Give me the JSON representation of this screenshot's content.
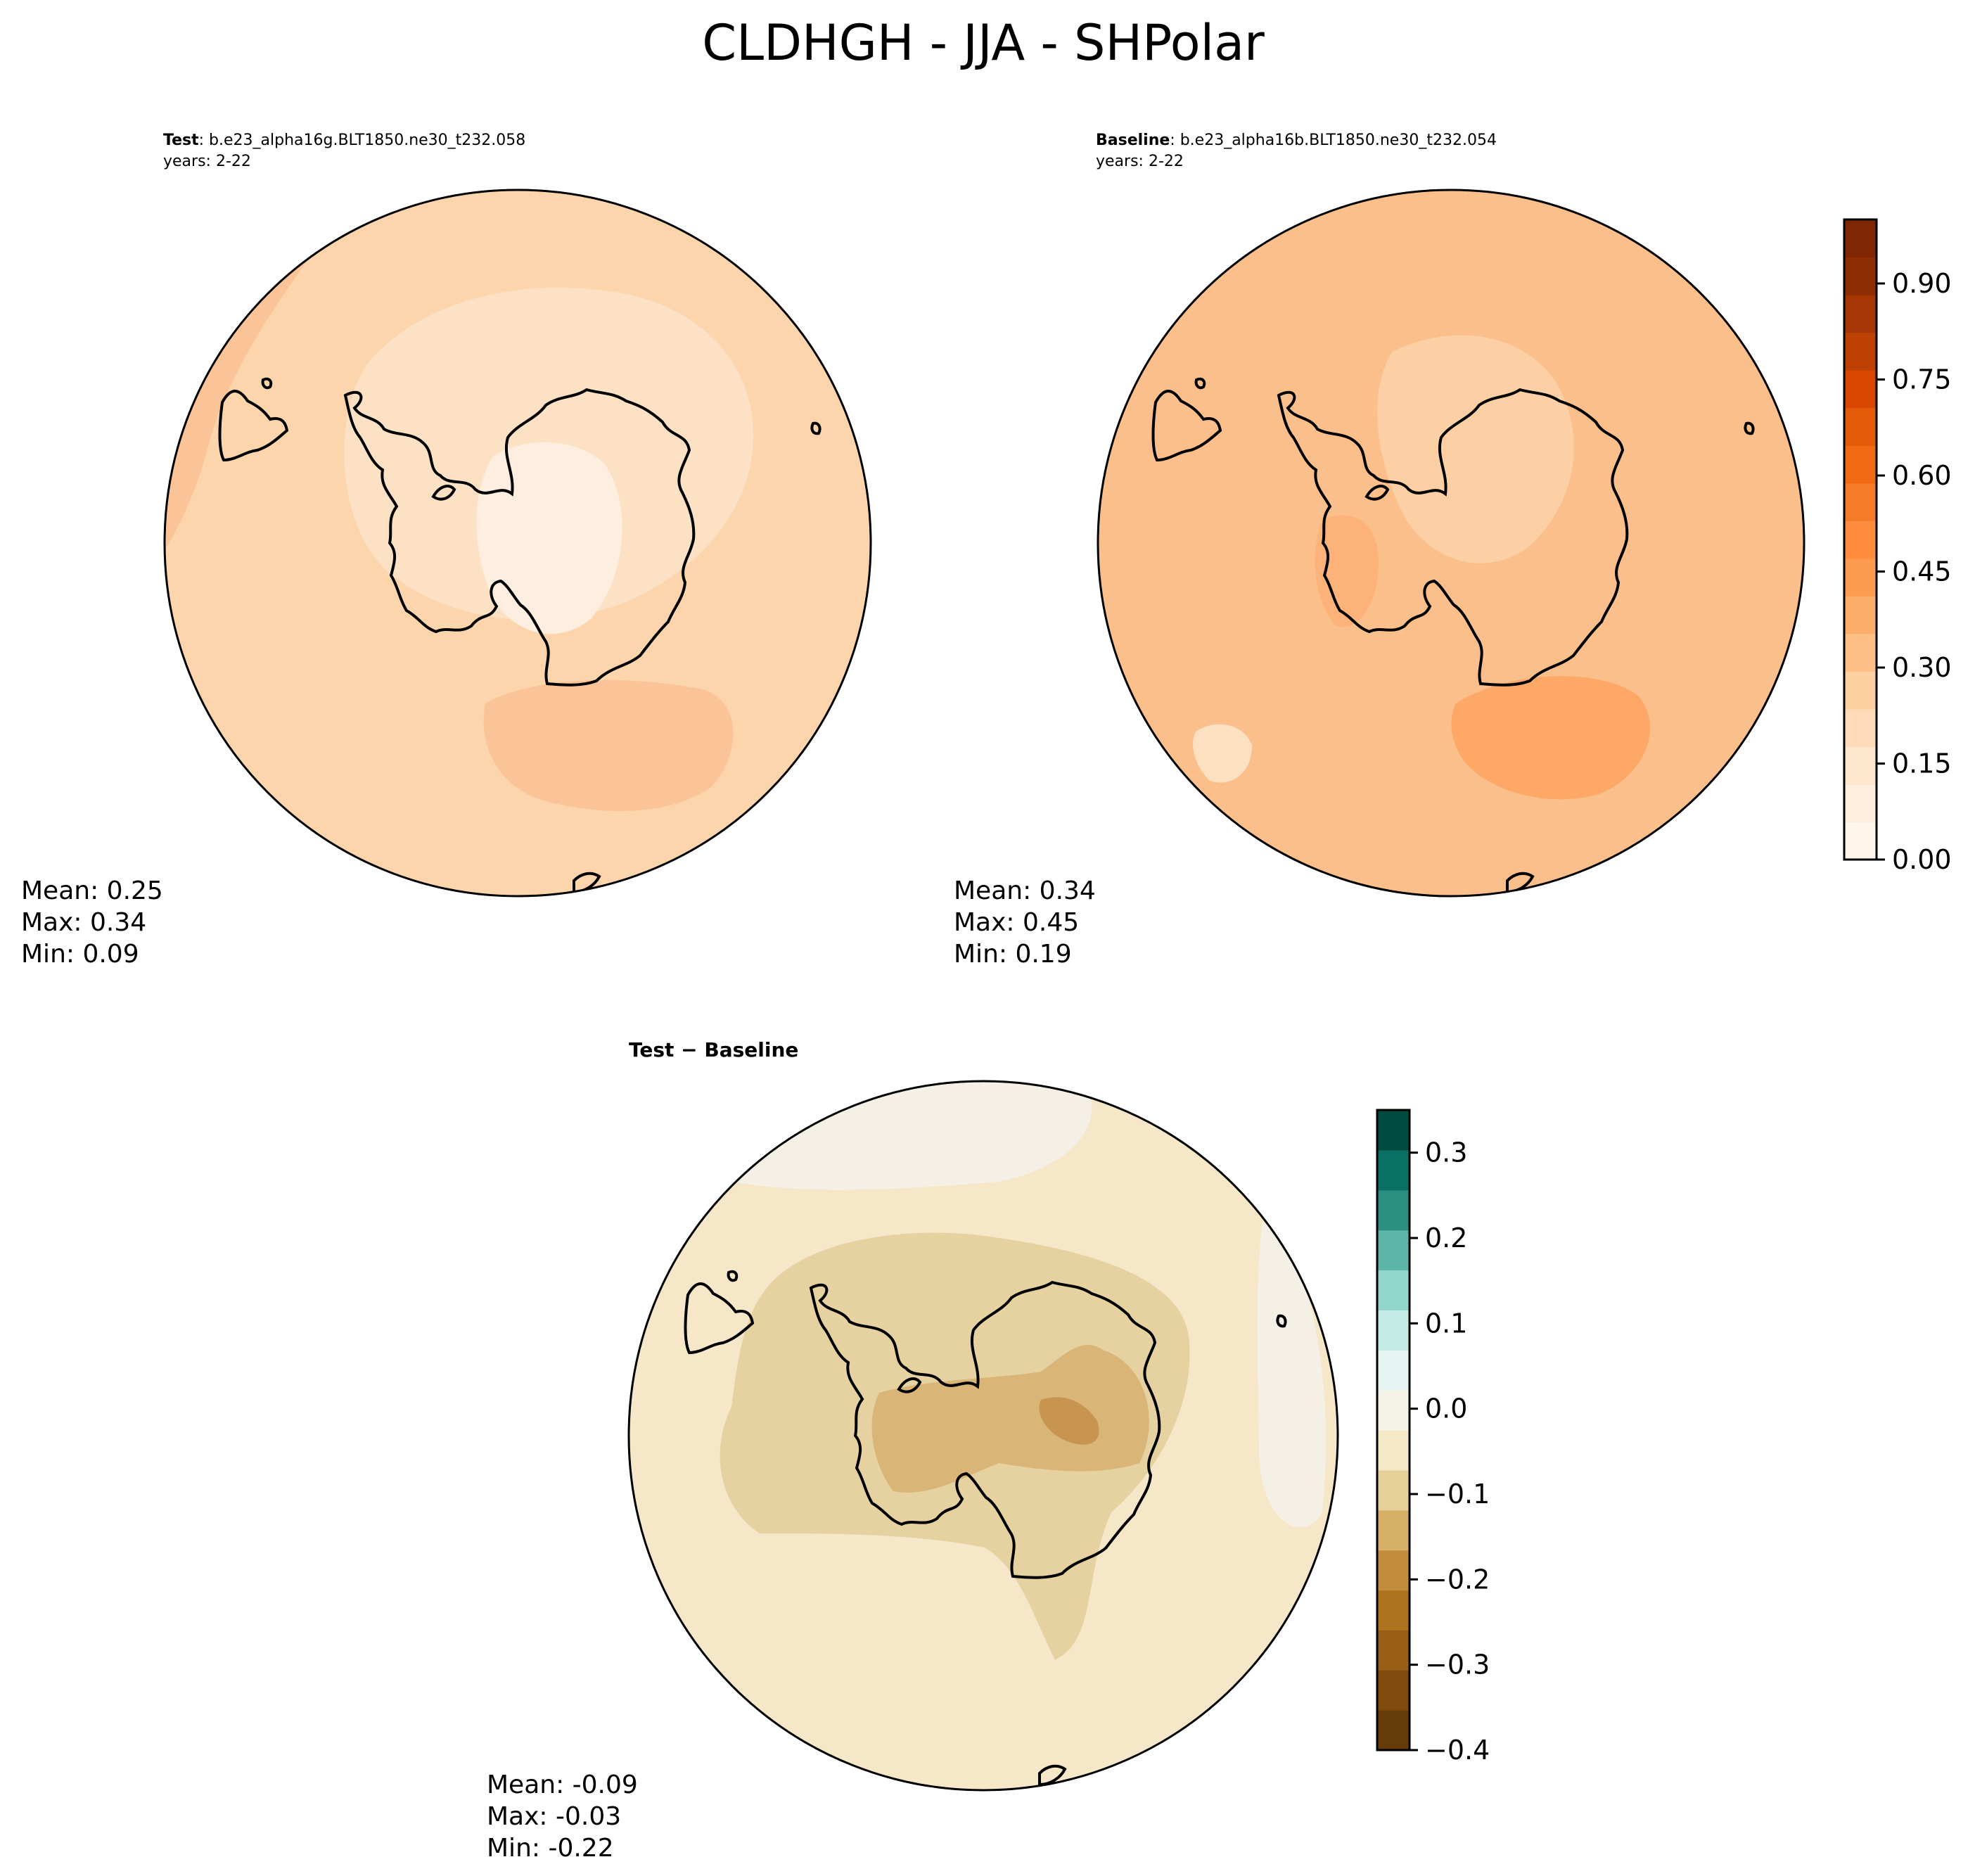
{
  "figure": {
    "title": "CLDHGH - JJA - SHPolar"
  },
  "panels": [
    {
      "id": "test",
      "label": "Test",
      "case": ": b.e23_alpha16g.BLT1850.ne30_t232.058",
      "years": "years: 2-22",
      "stats": {
        "mean": "Mean:  0.25",
        "max": "Max:  0.34",
        "min": "Min:  0.09"
      },
      "fill_color": "#fcd5ad",
      "regions": [
        {
          "color": "#fde1c4"
        },
        {
          "color": "#fbc498"
        },
        {
          "color": "#feeedf"
        },
        {
          "color": "#fbc498"
        }
      ]
    },
    {
      "id": "baseline",
      "label": "Baseline",
      "case": ": b.e23_alpha16b.BLT1850.ne30_t232.054",
      "years": "years: 2-22",
      "stats": {
        "mean": "Mean:  0.34",
        "max": "Max:  0.45",
        "min": "Min:  0.19"
      },
      "fill_color": "#fbbf8c",
      "regions": [
        {
          "color": "#fcd0a4"
        },
        {
          "color": "#fda866"
        },
        {
          "color": "#fdb27a"
        },
        {
          "color": "#fde0c2"
        }
      ]
    },
    {
      "id": "diff",
      "label": "Test − Baseline",
      "stats": {
        "mean": "Mean: -0.09",
        "max": "Max: -0.03",
        "min": "Min: -0.22"
      },
      "fill_color": "#f5e7c8",
      "regions": [
        {
          "color": "#f4f0e6"
        },
        {
          "color": "#e6d1a1"
        },
        {
          "color": "#d9b677"
        },
        {
          "color": "#c89550"
        }
      ]
    }
  ],
  "chart_data": [
    {
      "type": "heatmap",
      "name": "Test",
      "summary": {
        "mean": 0.25,
        "max": 0.34,
        "min": 0.09
      }
    },
    {
      "type": "heatmap",
      "name": "Baseline",
      "summary": {
        "mean": 0.34,
        "max": 0.45,
        "min": 0.19
      }
    },
    {
      "type": "heatmap",
      "name": "Test − Baseline",
      "summary": {
        "mean": -0.09,
        "max": -0.03,
        "min": -0.22
      }
    }
  ],
  "colorbars": [
    {
      "id": "cbar-main",
      "range": [
        0,
        1.0
      ],
      "colors": [
        "#fff5eb",
        "#ffeedd",
        "#fee6ce",
        "#fddbb9",
        "#fdd0a2",
        "#fdbf85",
        "#fdae6b",
        "#fd9c4f",
        "#fd8d3c",
        "#f57b29",
        "#f16913",
        "#e35a09",
        "#d94801",
        "#bc4001",
        "#a63603",
        "#8c2d04",
        "#7f2704"
      ],
      "ticks": [
        {
          "value": 0.0,
          "label": "0.00"
        },
        {
          "value": 0.15,
          "label": "0.15"
        },
        {
          "value": 0.3,
          "label": "0.30"
        },
        {
          "value": 0.45,
          "label": "0.45"
        },
        {
          "value": 0.6,
          "label": "0.60"
        },
        {
          "value": 0.75,
          "label": "0.75"
        },
        {
          "value": 0.9,
          "label": "0.90"
        }
      ]
    },
    {
      "id": "cbar-diff",
      "range": [
        -0.4,
        0.35
      ],
      "colors": [
        "#663b0a",
        "#804b0d",
        "#985e16",
        "#ad731f",
        "#c28d3d",
        "#d6b066",
        "#e7d19b",
        "#f5e8c6",
        "#f5f2e8",
        "#e6f4f1",
        "#c4eae3",
        "#93d6cb",
        "#5cb5a8",
        "#2c8f82",
        "#0a6f64",
        "#004b3f"
      ],
      "ticks": [
        {
          "value": -0.4,
          "label": "−0.4"
        },
        {
          "value": -0.3,
          "label": "−0.3"
        },
        {
          "value": -0.2,
          "label": "−0.2"
        },
        {
          "value": -0.1,
          "label": "−0.1"
        },
        {
          "value": 0.0,
          "label": "0.0"
        },
        {
          "value": 0.1,
          "label": "0.1"
        },
        {
          "value": 0.2,
          "label": "0.2"
        },
        {
          "value": 0.3,
          "label": "0.3"
        }
      ]
    }
  ]
}
